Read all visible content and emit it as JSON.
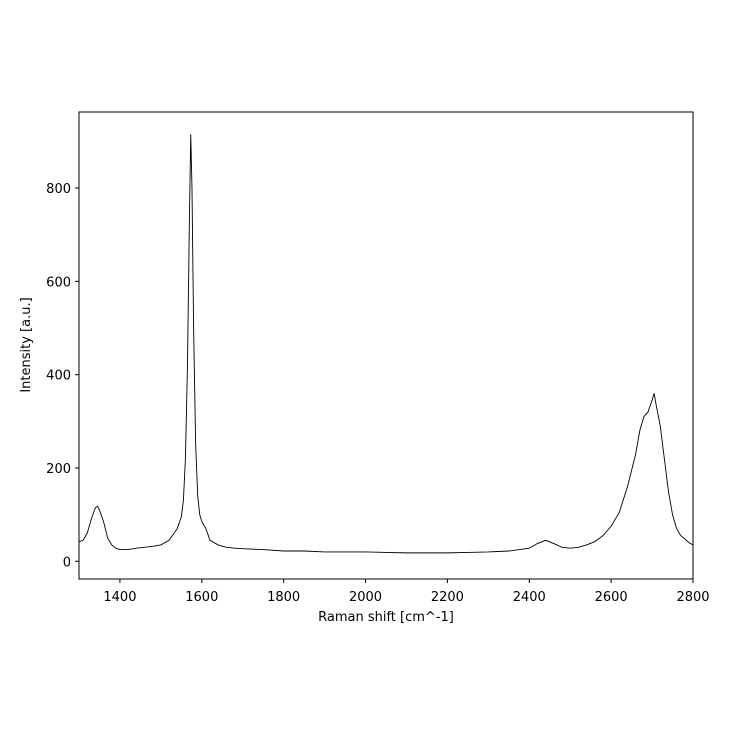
{
  "chart_data": {
    "type": "line",
    "xlabel": "Raman shift [cm^-1]",
    "ylabel": "Intensity [a.u.]",
    "x": [
      1300,
      1310,
      1320,
      1330,
      1340,
      1345,
      1350,
      1360,
      1370,
      1380,
      1390,
      1400,
      1420,
      1440,
      1460,
      1480,
      1500,
      1520,
      1540,
      1550,
      1555,
      1560,
      1565,
      1570,
      1573,
      1576,
      1580,
      1585,
      1590,
      1595,
      1600,
      1610,
      1620,
      1640,
      1660,
      1680,
      1700,
      1750,
      1800,
      1850,
      1900,
      1950,
      2000,
      2050,
      2100,
      2150,
      2200,
      2250,
      2300,
      2350,
      2400,
      2420,
      2440,
      2460,
      2480,
      2500,
      2520,
      2540,
      2560,
      2580,
      2600,
      2620,
      2640,
      2660,
      2670,
      2680,
      2690,
      2700,
      2705,
      2710,
      2720,
      2730,
      2740,
      2750,
      2760,
      2770,
      2780,
      2790,
      2800
    ],
    "values": [
      42,
      45,
      60,
      90,
      115,
      118,
      110,
      85,
      50,
      35,
      28,
      25,
      25,
      28,
      30,
      32,
      35,
      45,
      70,
      95,
      130,
      220,
      420,
      750,
      915,
      800,
      500,
      250,
      140,
      100,
      85,
      70,
      45,
      35,
      30,
      28,
      27,
      25,
      22,
      22,
      20,
      20,
      20,
      19,
      18,
      18,
      18,
      19,
      20,
      22,
      28,
      38,
      45,
      38,
      30,
      28,
      30,
      35,
      42,
      55,
      75,
      105,
      160,
      230,
      280,
      310,
      320,
      345,
      360,
      335,
      290,
      220,
      150,
      100,
      70,
      55,
      48,
      40,
      35
    ],
    "color": "#000000",
    "xlim": [
      1300,
      2800
    ],
    "ylim": [
      -38,
      963
    ],
    "xticks": [
      1400,
      1600,
      1800,
      2000,
      2200,
      2400,
      2600,
      2800
    ],
    "yticks": [
      0,
      200,
      400,
      600,
      800
    ],
    "grid": false
  }
}
